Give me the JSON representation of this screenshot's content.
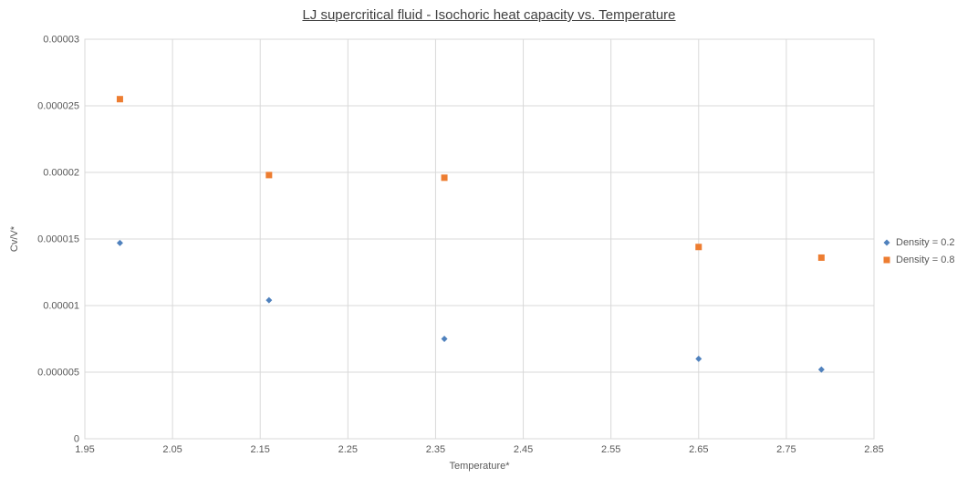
{
  "chart_data": {
    "type": "scatter",
    "title": "LJ supercritical fluid - Isochoric heat capacity vs. Temperature",
    "xlabel": "Temperature*",
    "ylabel": "Cv/V*",
    "xlim": [
      1.95,
      2.85
    ],
    "ylim": [
      0,
      3e-05
    ],
    "xticks": [
      1.95,
      2.05,
      2.15,
      2.25,
      2.35,
      2.45,
      2.55,
      2.65,
      2.75,
      2.85
    ],
    "xtick_labels": [
      "1.95",
      "2.05",
      "2.15",
      "2.25",
      "2.35",
      "2.45",
      "2.55",
      "2.65",
      "2.75",
      "2.85"
    ],
    "yticks": [
      0,
      5e-06,
      1e-05,
      1.5e-05,
      2e-05,
      2.5e-05,
      3e-05
    ],
    "ytick_labels": [
      "0",
      "0.000005",
      "0.00001",
      "0.000015",
      "0.00002",
      "0.000025",
      "0.00003"
    ],
    "grid": true,
    "legend_position": "right",
    "colors": {
      "grid": "#D9D9D9",
      "tick_text": "#595959",
      "title_text": "#404040",
      "series_blue": "#4F81BD",
      "series_orange": "#ED7D31"
    },
    "series": [
      {
        "name": "Density = 0.2",
        "marker": "diamond",
        "color": "#4F81BD",
        "points": [
          [
            1.99,
            1.47e-05
          ],
          [
            2.16,
            1.04e-05
          ],
          [
            2.36,
            7.5e-06
          ],
          [
            2.65,
            6e-06
          ],
          [
            2.79,
            5.2e-06
          ]
        ]
      },
      {
        "name": "Density = 0.8",
        "marker": "square",
        "color": "#ED7D31",
        "points": [
          [
            1.99,
            2.55e-05
          ],
          [
            2.16,
            1.98e-05
          ],
          [
            2.36,
            1.96e-05
          ],
          [
            2.65,
            1.44e-05
          ],
          [
            2.79,
            1.36e-05
          ]
        ]
      }
    ]
  }
}
